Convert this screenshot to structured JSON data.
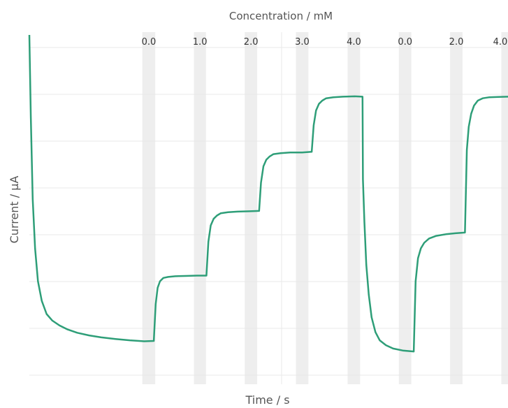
{
  "chart_data": {
    "type": "line",
    "title": "",
    "xlabel": "Time / s",
    "ylabel": "Current / μA",
    "top_axis_label": "Concentration / mM",
    "grid": true,
    "legend": "none",
    "colors": {
      "line": "#2e9e78",
      "band": "#eeeeee",
      "grid": "#e8e8e8"
    },
    "xlim": [
      0,
      100
    ],
    "ylim": [
      0,
      100
    ],
    "injection_bands": [
      {
        "start": 23.6,
        "end": 26.3,
        "label": "0.0"
      },
      {
        "start": 34.4,
        "end": 36.9,
        "label": "1.0"
      },
      {
        "start": 45.0,
        "end": 47.6,
        "label": "2.0"
      },
      {
        "start": 55.7,
        "end": 58.3,
        "label": "3.0"
      },
      {
        "start": 66.5,
        "end": 69.1,
        "label": "4.0"
      },
      {
        "start": 77.2,
        "end": 79.8,
        "label": "0.0"
      },
      {
        "start": 87.9,
        "end": 90.5,
        "label": "2.0"
      },
      {
        "start": 98.6,
        "end": 100.0,
        "label": "4.0"
      }
    ],
    "series": [
      {
        "values_x": [
          0,
          0.3,
          0.7,
          1.2,
          1.8,
          2.6,
          3.6,
          4.8,
          6.3,
          8.0,
          10.0,
          12.5,
          15.0,
          18.0,
          21.0,
          24.0,
          26.0,
          26.4,
          26.8,
          27.3,
          28.0,
          29.0,
          30.5,
          32.5,
          35.0,
          37.0,
          37.4,
          37.9,
          38.5,
          39.2,
          40.0,
          41.5,
          43.5,
          46.0,
          48.0,
          48.4,
          48.9,
          49.5,
          50.2,
          51.0,
          52.5,
          54.5,
          57.0,
          59.0,
          59.4,
          59.9,
          60.5,
          61.2,
          62.0,
          63.5,
          65.5,
          68.0,
          69.6,
          69.7,
          70.0,
          70.4,
          70.9,
          71.5,
          72.3,
          73.2,
          74.5,
          76.0,
          78.0,
          80.3,
          80.7,
          81.2,
          81.8,
          82.5,
          83.5,
          85.0,
          87.0,
          89.0,
          91.0,
          91.4,
          91.8,
          92.3,
          92.9,
          93.7,
          94.7,
          96.0,
          98.0,
          100.0
        ],
        "values_y": [
          100,
          75,
          50,
          35,
          25,
          19,
          15,
          13,
          11.5,
          10.3,
          9.3,
          8.5,
          7.9,
          7.4,
          7.0,
          6.7,
          6.8,
          18,
          23,
          25,
          26,
          26.3,
          26.5,
          26.6,
          26.7,
          26.7,
          37,
          42,
          44,
          45,
          45.7,
          46,
          46.2,
          46.3,
          46.4,
          55,
          60,
          62,
          63,
          63.7,
          64,
          64.2,
          64.2,
          64.4,
          72.5,
          77,
          79,
          80,
          80.7,
          81,
          81.2,
          81.3,
          81.2,
          56,
          43,
          30,
          21,
          14,
          9.5,
          7,
          5.5,
          4.5,
          3.9,
          3.6,
          25,
          32,
          35,
          36.7,
          38,
          38.8,
          39.3,
          39.6,
          39.8,
          65,
          72,
          76,
          78.5,
          80,
          80.7,
          81,
          81.1,
          81.2
        ]
      }
    ]
  }
}
